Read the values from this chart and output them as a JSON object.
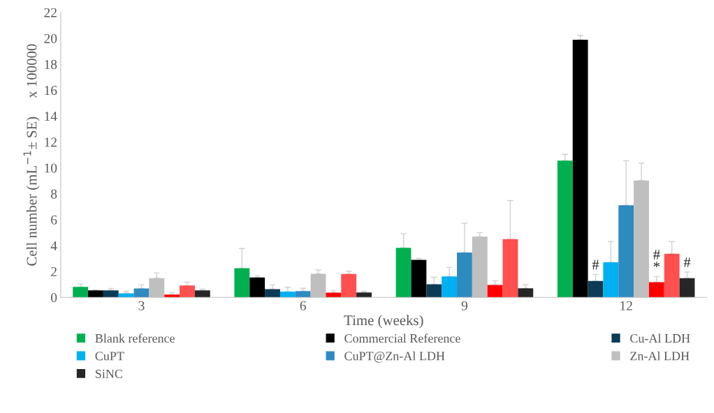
{
  "chart_data": {
    "type": "bar",
    "xlabel": "Time (weeks)",
    "ylabel": "Cell number (mL$^{−1}$± SE)     x 100000",
    "categories": [
      "3",
      "6",
      "9",
      "12"
    ],
    "ylim": [
      0,
      22
    ],
    "yticks": [
      0,
      2,
      4,
      6,
      8,
      10,
      12,
      14,
      16,
      18,
      20,
      22
    ],
    "grid": false,
    "legend": "bottom",
    "series": [
      {
        "name": "Blank reference",
        "color": "#00b050",
        "values": [
          0.81,
          2.25,
          3.82,
          10.55
        ],
        "errors": [
          [
            0.81,
            1.03
          ],
          [
            2.25,
            3.77
          ],
          [
            3.82,
            4.92
          ],
          [
            10.55,
            11.04
          ]
        ]
      },
      {
        "name": "Commercial Reference",
        "color": "#000000",
        "values": [
          0.54,
          1.53,
          2.89,
          19.89
        ],
        "errors": [
          [
            0.54,
            0.58
          ],
          [
            1.53,
            1.66
          ],
          [
            2.89,
            3.01
          ],
          [
            19.89,
            20.22
          ]
        ]
      },
      {
        "name": "Cu-Al LDH",
        "color": "#0d3a55",
        "values": [
          0.54,
          0.63,
          1.01,
          1.26
        ],
        "errors": [
          [
            0.54,
            0.69
          ],
          [
            0.63,
            0.96
          ],
          [
            1.01,
            1.55
          ],
          [
            1.26,
            1.77
          ]
        ],
        "value_labels": [
          null,
          null,
          null,
          "#"
        ]
      },
      {
        "name": "CuPT",
        "color": "#00b0f0",
        "values": [
          0.31,
          0.45,
          1.62,
          2.71
        ],
        "errors": [
          [
            0.31,
            0.47
          ],
          [
            0.45,
            0.78
          ],
          [
            1.62,
            2.31
          ],
          [
            2.71,
            4.31
          ]
        ]
      },
      {
        "name": "CuPT@Zn-Al LDH",
        "color": "#2e8bc0",
        "values": [
          0.69,
          0.49,
          3.46,
          7.11
        ],
        "errors": [
          [
            0.69,
            0.96
          ],
          [
            0.49,
            0.7
          ],
          [
            3.46,
            5.72
          ],
          [
            7.11,
            10.55
          ]
        ]
      },
      {
        "name": "Zn-Al LDH",
        "color": "#bfbfbf",
        "values": [
          1.48,
          1.82,
          4.69,
          9.02
        ],
        "errors": [
          [
            1.48,
            1.89
          ],
          [
            1.82,
            2.11
          ],
          [
            4.69,
            5.0
          ],
          [
            9.02,
            10.37
          ]
        ]
      },
      {
        "color": "#ff0000",
        "values": [
          0.22,
          0.36,
          0.96,
          1.17
        ],
        "errors": [
          [
            0.22,
            0.36
          ],
          [
            0.36,
            0.52
          ],
          [
            0.96,
            1.28
          ],
          [
            1.17,
            1.61
          ]
        ],
        "value_labels": [
          null,
          null,
          null,
          "#\n*"
        ]
      },
      {
        "color": "#ff4f4f",
        "values": [
          0.92,
          1.8,
          4.49,
          3.37
        ],
        "errors": [
          [
            0.92,
            1.17
          ],
          [
            1.8,
            2.02
          ],
          [
            4.49,
            7.47
          ],
          [
            3.37,
            4.31
          ]
        ]
      },
      {
        "name": "SiNC",
        "color": "#262626",
        "values": [
          0.54,
          0.38,
          0.7,
          1.48
        ],
        "errors": [
          [
            0.54,
            0.63
          ],
          [
            0.38,
            0.47
          ],
          [
            0.7,
            0.97
          ],
          [
            1.48,
            1.95
          ]
        ],
        "value_labels": [
          null,
          null,
          null,
          "#"
        ]
      }
    ]
  }
}
